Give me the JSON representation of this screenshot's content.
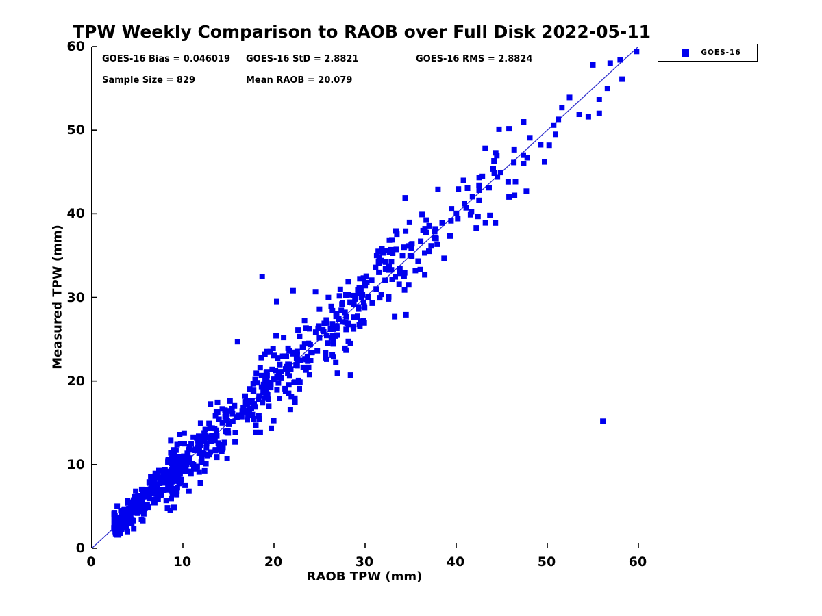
{
  "title": "TPW Weekly Comparison to RAOB over Full Disk 2022-05-11",
  "stats_display": {
    "bias": "GOES-16 Bias = 0.046019",
    "std": "GOES-16 StD = 2.8821",
    "rms": "GOES-16 RMS = 2.8824",
    "sample": "Sample Size = 829",
    "mean_raob": "Mean RAOB = 20.079"
  },
  "legend": {
    "label": "GOES-16",
    "marker_icon": "blue-square-marker-icon",
    "marker_color": "#0000ee"
  },
  "axes": {
    "x": {
      "label": "RAOB TPW (mm)",
      "ticks": [
        "0",
        "10",
        "20",
        "30",
        "40",
        "50",
        "60"
      ],
      "range": [
        0,
        60
      ]
    },
    "y": {
      "label": "Measured TPW (mm)",
      "ticks": [
        "0",
        "10",
        "20",
        "30",
        "40",
        "50",
        "60"
      ],
      "range": [
        0,
        60
      ]
    }
  },
  "colors": {
    "marker": "#0000ee",
    "fit_line": "#3333cc",
    "axis": "#000000",
    "text": "#000000",
    "background": "#ffffff"
  },
  "chart_data": {
    "type": "scatter",
    "title": "TPW Weekly Comparison to RAOB over Full Disk 2022-05-11",
    "xlabel": "RAOB TPW (mm)",
    "ylabel": "Measured TPW (mm)",
    "xlim": [
      0,
      60
    ],
    "ylim": [
      0,
      60
    ],
    "grid": false,
    "legend_position": "top-right-outside",
    "series_name": "GOES-16",
    "marker_style": "filled-square",
    "stats": {
      "bias": 0.046019,
      "std": 2.8821,
      "rms": 2.8824,
      "sample_size": 829,
      "mean_raob": 20.079
    },
    "identity_line": {
      "from": [
        0,
        0
      ],
      "to": [
        60,
        60
      ]
    },
    "featured_points": [
      [
        59.8,
        59.4
      ],
      [
        58.0,
        58.4
      ],
      [
        56.9,
        58.0
      ],
      [
        55.0,
        57.8
      ],
      [
        58.2,
        56.1
      ],
      [
        56.6,
        55.0
      ],
      [
        55.7,
        53.7
      ],
      [
        55.7,
        52.0
      ],
      [
        54.5,
        51.6
      ],
      [
        53.5,
        51.9
      ],
      [
        51.6,
        52.7
      ],
      [
        50.7,
        50.6
      ],
      [
        50.9,
        49.5
      ],
      [
        50.2,
        48.2
      ],
      [
        47.4,
        51.0
      ],
      [
        44.7,
        50.1
      ],
      [
        47.8,
        46.7
      ],
      [
        49.7,
        46.2
      ],
      [
        47.4,
        46.0
      ],
      [
        45.8,
        42.0
      ],
      [
        46.4,
        42.2
      ],
      [
        47.7,
        42.7
      ],
      [
        43.7,
        39.8
      ],
      [
        44.3,
        38.9
      ],
      [
        42.2,
        38.3
      ],
      [
        40.8,
        44.0
      ],
      [
        42.5,
        43.4
      ],
      [
        40.9,
        41.2
      ],
      [
        42.5,
        41.6
      ],
      [
        34.4,
        41.9
      ],
      [
        56.1,
        15.2
      ],
      [
        18.7,
        32.5
      ],
      [
        16.0,
        24.7
      ],
      [
        28.4,
        20.7
      ],
      [
        21.8,
        16.6
      ],
      [
        22.3,
        17.5
      ],
      [
        19.0,
        23.2
      ],
      [
        20.3,
        29.5
      ],
      [
        22.1,
        30.8
      ]
    ],
    "generator": {
      "seed": 1337,
      "clip_sigma": 2.7,
      "y_min": 1.6,
      "y_max": 59.2,
      "clusters": [
        {
          "n": 276,
          "x_min": 2.4,
          "x_max": 10.0,
          "x_pow": 1.25,
          "sigma": 1.05
        },
        {
          "n": 198,
          "x_min": 8.0,
          "x_max": 18.0,
          "x_pow": 1.0,
          "sigma": 1.55
        },
        {
          "n": 180,
          "x_min": 18.0,
          "x_max": 30.0,
          "x_pow": 1.0,
          "sigma": 2.25
        },
        {
          "n": 90,
          "x_min": 28.0,
          "x_max": 38.0,
          "x_pow": 1.0,
          "sigma": 2.45
        },
        {
          "n": 38,
          "x_min": 36.0,
          "x_max": 46.0,
          "x_pow": 1.0,
          "sigma": 2.55
        },
        {
          "n": 8,
          "x_min": 46.0,
          "x_max": 52.5,
          "x_pow": 1.0,
          "sigma": 1.9
        }
      ]
    }
  }
}
